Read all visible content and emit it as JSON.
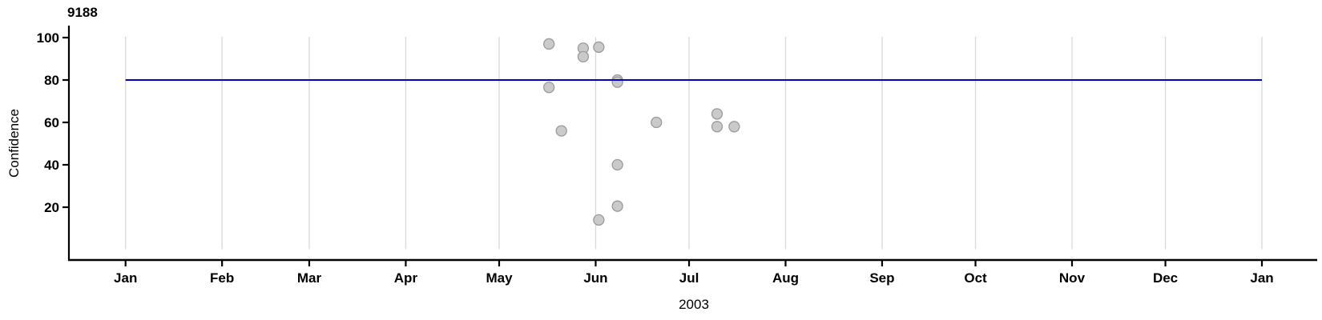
{
  "chart_data": {
    "type": "scatter",
    "title": "9188",
    "ylabel": "Confidence",
    "xlabel": "2003",
    "x_axis": {
      "unit": "day_of_year",
      "range": [
        0,
        365
      ],
      "month_ticks": [
        {
          "label": "Jan",
          "day": 0
        },
        {
          "label": "Feb",
          "day": 31
        },
        {
          "label": "Mar",
          "day": 59
        },
        {
          "label": "Apr",
          "day": 90
        },
        {
          "label": "May",
          "day": 120
        },
        {
          "label": "Jun",
          "day": 151
        },
        {
          "label": "Jul",
          "day": 181
        },
        {
          "label": "Aug",
          "day": 212
        },
        {
          "label": "Sep",
          "day": 243
        },
        {
          "label": "Oct",
          "day": 273
        },
        {
          "label": "Nov",
          "day": 304
        },
        {
          "label": "Dec",
          "day": 334
        },
        {
          "label": "Jan",
          "day": 365
        }
      ]
    },
    "y_axis": {
      "range": [
        0,
        100.5
      ],
      "ticks": [
        20,
        40,
        60,
        80,
        100
      ]
    },
    "grid": {
      "vertical_month_lines": true,
      "horizontal_lines": false,
      "color": "#d9d9d9"
    },
    "reference_line": {
      "y": 80,
      "color": "#0000cd",
      "from_day": 0,
      "to_day": 365
    },
    "point_style": {
      "fill": "#cacaca",
      "stroke": "#9b9b9b",
      "radius": 6.5,
      "stroke_width": 1.3
    },
    "axis_color": "#000000",
    "points": [
      {
        "day": 136,
        "confidence": 97
      },
      {
        "day": 136,
        "confidence": 76.5
      },
      {
        "day": 140,
        "confidence": 56
      },
      {
        "day": 147,
        "confidence": 95
      },
      {
        "day": 147,
        "confidence": 91
      },
      {
        "day": 152,
        "confidence": 95.5
      },
      {
        "day": 152,
        "confidence": 14
      },
      {
        "day": 158,
        "confidence": 80
      },
      {
        "day": 158,
        "confidence": 79
      },
      {
        "day": 158,
        "confidence": 40
      },
      {
        "day": 158,
        "confidence": 20.5
      },
      {
        "day": 170.5,
        "confidence": 60
      },
      {
        "day": 190,
        "confidence": 64
      },
      {
        "day": 190,
        "confidence": 58
      },
      {
        "day": 195.5,
        "confidence": 58
      }
    ]
  }
}
